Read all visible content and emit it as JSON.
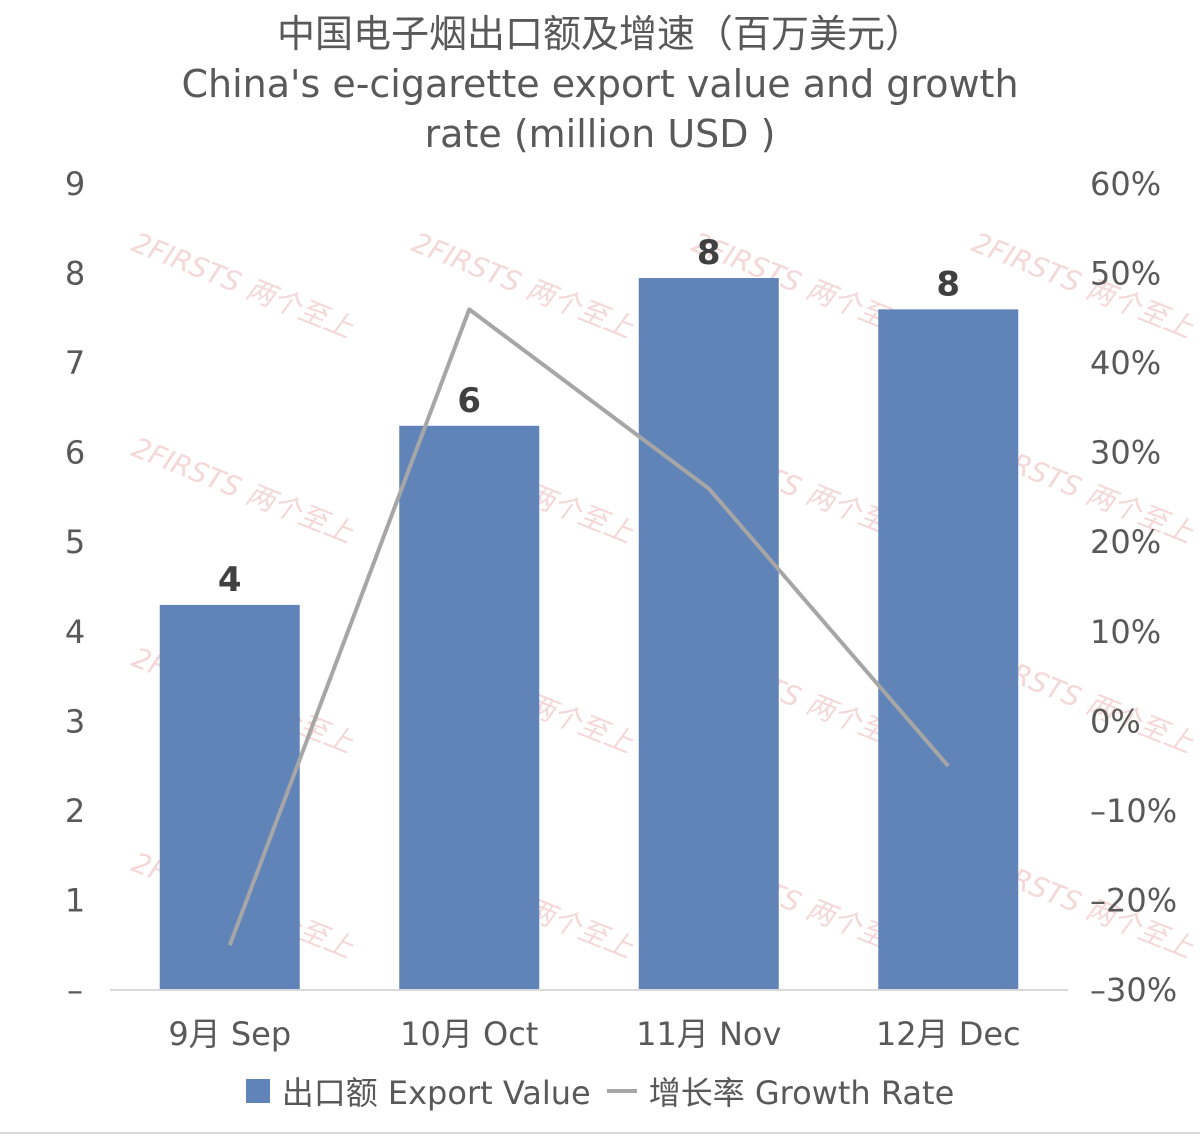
{
  "chart_data": {
    "type": "bar",
    "title_zh": "中国电子烟出口额及增速（百万美元）",
    "title_en_line1": "China's e-cigarette export value and growth",
    "title_en_line2": "rate (million USD )",
    "categories": [
      "9月 Sep",
      "10月 Oct",
      "11月 Nov",
      "12月 Dec"
    ],
    "series": [
      {
        "name": "出口额 Export Value",
        "axis": "left",
        "values": [
          4.3,
          6.3,
          7.95,
          7.6
        ],
        "data_labels": [
          "4",
          "6",
          "8",
          "8"
        ],
        "color": "#6083b8"
      },
      {
        "name": "增长率 Growth Rate",
        "axis": "right",
        "type": "line",
        "values": [
          -25,
          46,
          26,
          -5
        ],
        "color": "#a6a6a6"
      }
    ],
    "y_left": {
      "min": 0,
      "max": 9,
      "ticks": [
        "–",
        "1",
        "2",
        "3",
        "4",
        "5",
        "6",
        "7",
        "8",
        "9"
      ]
    },
    "y_right": {
      "min": -30,
      "max": 60,
      "ticks": [
        "–30%",
        "–20%",
        "–10%",
        "0%",
        "10%",
        "20%",
        "30%",
        "40%",
        "50%",
        "60%"
      ]
    },
    "grid": false,
    "legend_position": "bottom"
  },
  "legend": {
    "bar_label": "出口额 Export Value",
    "line_label": "增长率 Growth Rate"
  },
  "watermark": "2FIRSTS 两个至上"
}
